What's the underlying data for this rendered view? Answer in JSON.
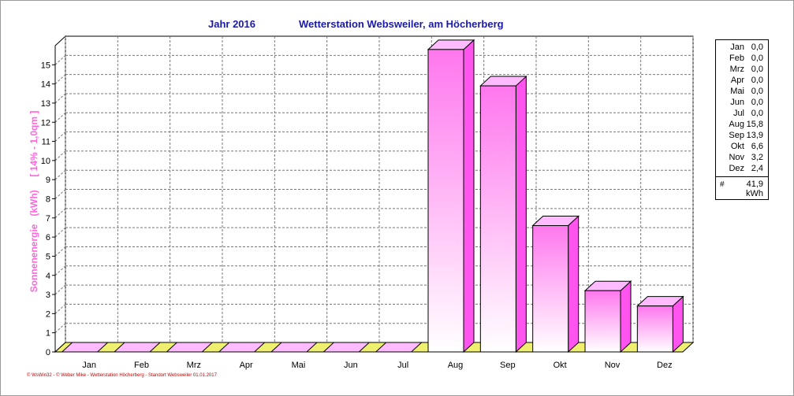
{
  "header": {
    "year_label": "Jahr  2016",
    "station_label": "Wetterstation Websweiler, am Höcherberg"
  },
  "legend": {
    "total_symbol": "#",
    "total_value": "41,9",
    "total_unit": "kWh"
  },
  "footer": {
    "credit": "© WsWin32  -  © Weber Mike  -  Wetterstation Höcherberg - Standort Websweiler  01.01.2017"
  },
  "colors": {
    "bar_front_top": "#ff77ee",
    "bar_front_bottom": "#ffffff",
    "bar_side": "#ff55ee",
    "bar_top": "#ffbbff",
    "floor": "#f0f070",
    "axis_label": "#ff66dd",
    "title": "#1a1aa8"
  },
  "chart_data": {
    "type": "bar",
    "categories": [
      "Jan",
      "Feb",
      "Mrz",
      "Apr",
      "Mai",
      "Jun",
      "Jul",
      "Aug",
      "Sep",
      "Okt",
      "Nov",
      "Dez"
    ],
    "values_display": [
      "0,0",
      "0,0",
      "0,0",
      "0,0",
      "0,0",
      "0,0",
      "0,0",
      "15,8",
      "13,9",
      "6,6",
      "3,2",
      "2,4"
    ],
    "values": [
      0,
      0,
      0,
      0,
      0,
      0,
      0,
      15.8,
      13.9,
      6.6,
      3.2,
      2.4
    ],
    "ylabel": "Sonnenenergie   (kWh)     [ 14% - 1,0qm ]",
    "ylim": [
      0,
      16
    ],
    "yticks": [
      0,
      1,
      2,
      3,
      4,
      5,
      6,
      7,
      8,
      9,
      10,
      11,
      12,
      13,
      14,
      15
    ],
    "grid": true,
    "legend_position": "right"
  }
}
